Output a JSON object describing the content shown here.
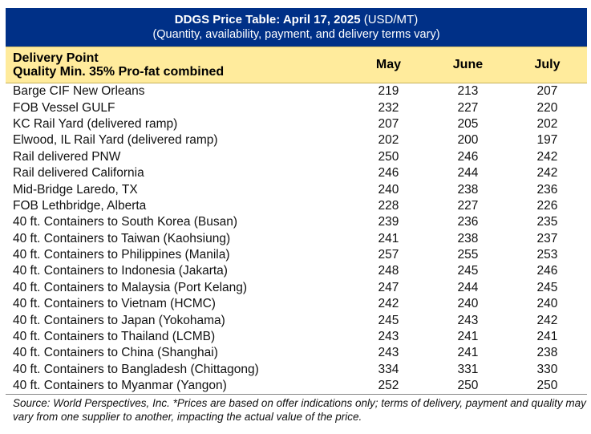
{
  "header": {
    "title_bold": "DDGS Price Table: April 17, 2025",
    "title_unit": " (USD/MT)",
    "subtitle": "(Quantity, availability, payment, and delivery terms vary)"
  },
  "columns": {
    "label_line1": "Delivery Point",
    "label_line2": "Quality Min. 35% Pro-fat combined",
    "months": [
      "May",
      "June",
      "July"
    ]
  },
  "rows": [
    {
      "label": "Barge CIF New Orleans",
      "values": [
        "219",
        "213",
        "207"
      ]
    },
    {
      "label": "FOB Vessel GULF",
      "values": [
        "232",
        "227",
        "220"
      ]
    },
    {
      "label": "KC Rail Yard (delivered ramp)",
      "values": [
        "207",
        "205",
        "202"
      ]
    },
    {
      "label": "Elwood, IL Rail Yard (delivered ramp)",
      "values": [
        "202",
        "200",
        "197"
      ]
    },
    {
      "label": "Rail delivered PNW",
      "values": [
        "250",
        "246",
        "242"
      ]
    },
    {
      "label": "Rail delivered California",
      "values": [
        "246",
        "244",
        "242"
      ]
    },
    {
      "label": "Mid-Bridge Laredo, TX",
      "values": [
        "240",
        "238",
        "236"
      ]
    },
    {
      "label": "FOB Lethbridge, Alberta",
      "values": [
        "228",
        "227",
        "226"
      ]
    },
    {
      "label": "40 ft. Containers to South Korea (Busan)",
      "values": [
        "239",
        "236",
        "235"
      ]
    },
    {
      "label": "40 ft. Containers to Taiwan (Kaohsiung)",
      "values": [
        "241",
        "238",
        "237"
      ]
    },
    {
      "label": "40 ft. Containers to Philippines (Manila)",
      "values": [
        "257",
        "255",
        "253"
      ]
    },
    {
      "label": "40 ft. Containers to Indonesia (Jakarta)",
      "values": [
        "248",
        "245",
        "246"
      ]
    },
    {
      "label": "40 ft. Containers to Malaysia (Port Kelang)",
      "values": [
        "247",
        "244",
        "245"
      ]
    },
    {
      "label": "40 ft. Containers to Vietnam (HCMC)",
      "values": [
        "242",
        "240",
        "240"
      ]
    },
    {
      "label": "40 ft. Containers to Japan (Yokohama)",
      "values": [
        "245",
        "243",
        "242"
      ]
    },
    {
      "label": "40 ft. Containers to Thailand (LCMB)",
      "values": [
        "243",
        "241",
        "241"
      ]
    },
    {
      "label": "40 ft. Containers to China (Shanghai)",
      "values": [
        "243",
        "241",
        "238"
      ]
    },
    {
      "label": "40 ft. Containers to Bangladesh (Chittagong)",
      "values": [
        "334",
        "331",
        "330"
      ]
    },
    {
      "label": "40 ft. Containers to Myanmar (Yangon)",
      "values": [
        "252",
        "250",
        "250"
      ]
    }
  ],
  "footnote": "Source: World Perspectives, Inc. *Prices are based on offer indications only; terms of delivery, payment and quality may vary from one supplier to another, impacting the actual value of the price.",
  "colors": {
    "title_bg": "#003087",
    "header_bg": "#ffeb9c"
  }
}
